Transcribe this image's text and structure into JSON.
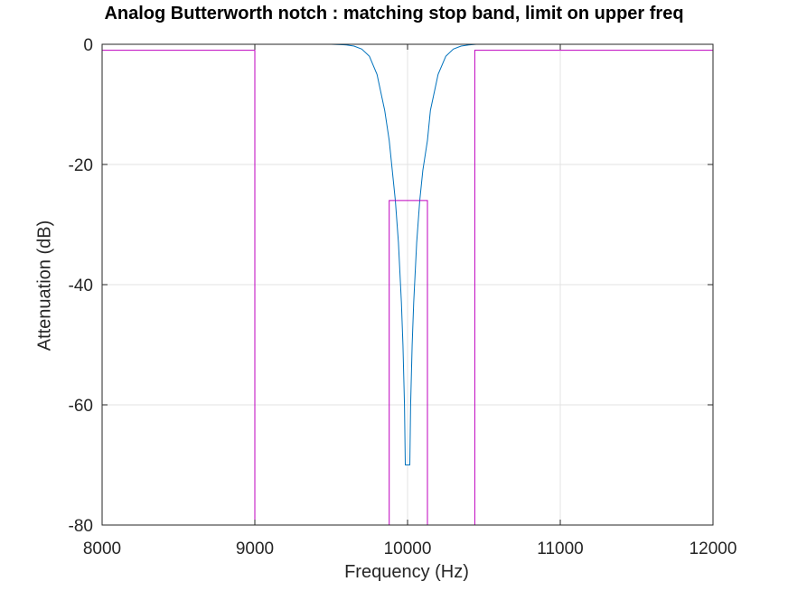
{
  "chart_data": {
    "type": "line",
    "title": "Analog Butterworth notch : matching stop band, limit on upper freq",
    "xlabel": "Frequency (Hz)",
    "ylabel": "Attenuation (dB)",
    "xlim": [
      8000,
      12000
    ],
    "ylim": [
      -80,
      0
    ],
    "xticks": [
      8000,
      9000,
      10000,
      11000,
      12000
    ],
    "yticks": [
      -80,
      -60,
      -40,
      -20,
      0
    ],
    "grid": true,
    "series": [
      {
        "color": "#0072bd",
        "x": [
          8000,
          9000,
          9500,
          9600,
          9650,
          9700,
          9750,
          9800,
          9850,
          9880,
          9900,
          9920,
          9940,
          9960,
          9970,
          9980,
          9985,
          10015,
          10020,
          10030,
          10040,
          10060,
          10080,
          10100,
          10130,
          10150,
          10200,
          10250,
          10300,
          10350,
          10400,
          10450,
          10500,
          11000,
          12000
        ],
        "y": [
          0,
          0,
          0,
          -0.1,
          -0.3,
          -0.8,
          -2,
          -5,
          -11,
          -16,
          -21,
          -26,
          -33,
          -43,
          -50,
          -60,
          -70,
          -70,
          -60,
          -50,
          -43,
          -33,
          -26,
          -21,
          -16,
          -11,
          -5,
          -2,
          -0.8,
          -0.3,
          -0.1,
          0,
          0,
          0,
          0
        ]
      },
      {
        "color": "#bf00bf",
        "x": [
          8000,
          9000,
          9000,
          9880,
          9880,
          10130,
          10130,
          10440,
          10440,
          12000
        ],
        "y": [
          -1,
          -1,
          -80,
          -80,
          -26,
          -26,
          -80,
          -80,
          -1,
          -1
        ]
      },
      {
        "color": "#bf00bf",
        "x": [
          8000,
          9000,
          9000,
          9880,
          9880,
          10130,
          10130,
          10440,
          10440,
          12000
        ],
        "y": [
          0,
          0,
          0,
          0,
          0,
          0,
          0,
          0,
          0,
          0
        ]
      }
    ]
  }
}
